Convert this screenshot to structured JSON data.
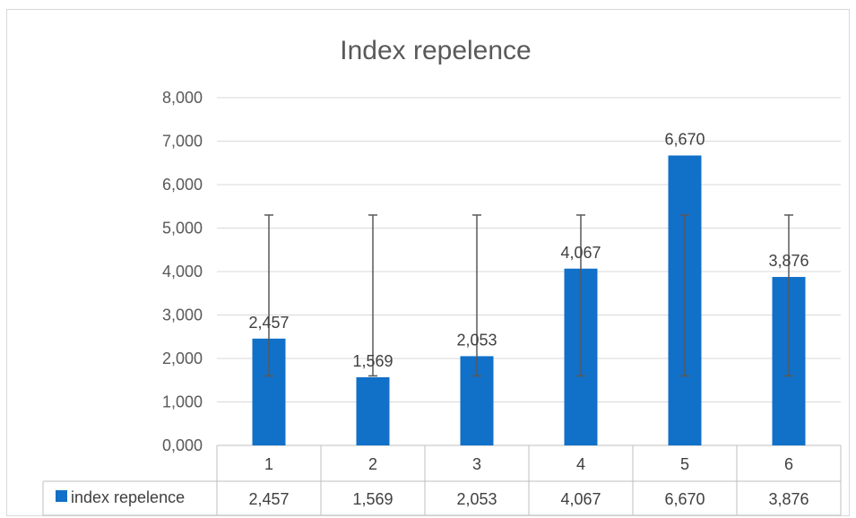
{
  "chart_data": {
    "type": "bar",
    "title": "Index repelence",
    "categories": [
      "1",
      "2",
      "3",
      "4",
      "5",
      "6"
    ],
    "series": [
      {
        "name": "index repelence",
        "values": [
          2.457,
          1.569,
          2.053,
          4.067,
          6.67,
          3.876
        ],
        "color": "#1170c8"
      }
    ],
    "data_labels": [
      "2,457",
      "1,569",
      "2,053",
      "4,067",
      "6,670",
      "3,876"
    ],
    "y_tick_labels": [
      "0,000",
      "1,000",
      "2,000",
      "3,000",
      "4,000",
      "5,000",
      "6,000",
      "7,000",
      "8,000"
    ],
    "ylim": [
      0,
      8
    ],
    "error_bars": {
      "lower": 1.6,
      "upper": 5.3
    },
    "grid": true,
    "legend_position": "data-table"
  }
}
